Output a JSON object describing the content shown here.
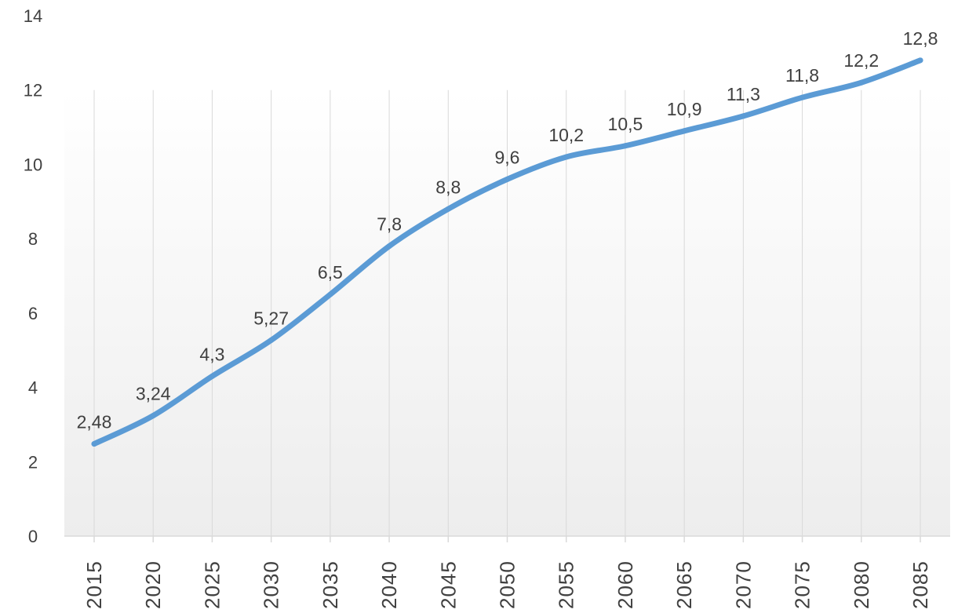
{
  "chart_data": {
    "type": "line",
    "categories": [
      "2015",
      "2020",
      "2025",
      "2030",
      "2035",
      "2040",
      "2045",
      "2050",
      "2055",
      "2060",
      "2065",
      "2070",
      "2075",
      "2080",
      "2085"
    ],
    "series": [
      {
        "values": [
          2.48,
          3.24,
          4.3,
          5.27,
          6.5,
          7.8,
          8.8,
          9.6,
          10.2,
          10.5,
          10.9,
          11.3,
          11.8,
          12.2,
          12.8
        ],
        "data_labels": [
          "2,48",
          "3,24",
          "4,3",
          "5,27",
          "6,5",
          "7,8",
          "8,8",
          "9,6",
          "10,2",
          "10,5",
          "10,9",
          "11,3",
          "11,8",
          "12,2",
          "12,8"
        ]
      }
    ],
    "y_ticks": [
      "0",
      "2",
      "4",
      "6",
      "8",
      "10",
      "12",
      "14"
    ],
    "ylim": [
      0,
      14
    ],
    "title": "",
    "xlabel": "",
    "ylabel": "",
    "grid": "vertical",
    "legend": "none",
    "line_color": "#5B9BD5",
    "grid_color": "#D9D9D9",
    "text_color": "#404040"
  }
}
